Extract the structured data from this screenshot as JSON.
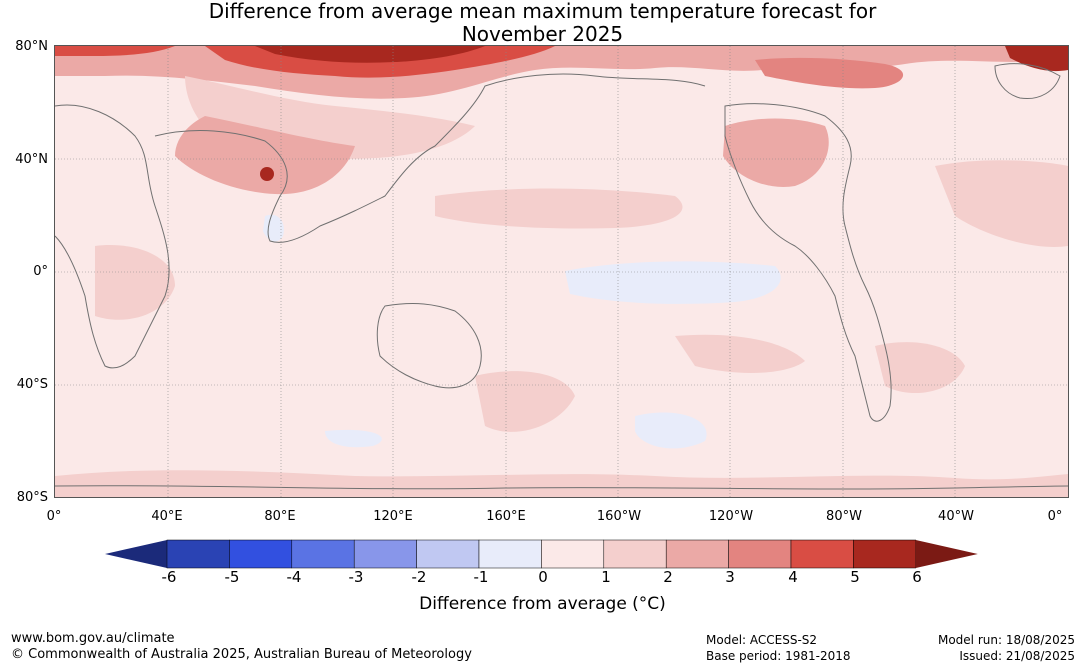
{
  "title_line1": "Difference from average mean maximum temperature forecast for",
  "title_line2": "November 2025",
  "map": {
    "lat_labels": [
      "80°N",
      "40°N",
      "0°",
      "40°S",
      "80°S"
    ],
    "lon_labels": [
      "0°",
      "40°E",
      "80°E",
      "120°E",
      "160°E",
      "160°W",
      "120°W",
      "80°W",
      "40°W",
      "0°"
    ]
  },
  "colorbar": {
    "label": "Difference from average (°C)",
    "ticks": [
      "-6",
      "-5",
      "-4",
      "-3",
      "-2",
      "-1",
      "0",
      "1",
      "2",
      "3",
      "4",
      "5",
      "6"
    ],
    "colors": [
      "#1b2a7a",
      "#2a43b4",
      "#3250e0",
      "#5a73e4",
      "#8896ea",
      "#c0c8f2",
      "#e8ecfa",
      "#fbe9e8",
      "#f4cfcd",
      "#eba9a6",
      "#e38480",
      "#d94d44",
      "#a8281f",
      "#7b1a14"
    ]
  },
  "footer": {
    "website": "www.bom.gov.au/climate",
    "copyright": "© Commonwealth of Australia 2025, Australian Bureau of Meteorology",
    "model": "Model: ACCESS-S2",
    "base_period": "Base period: 1981-2018",
    "model_run": "Model run: 18/08/2025",
    "issued": "Issued: 21/08/2025"
  }
}
